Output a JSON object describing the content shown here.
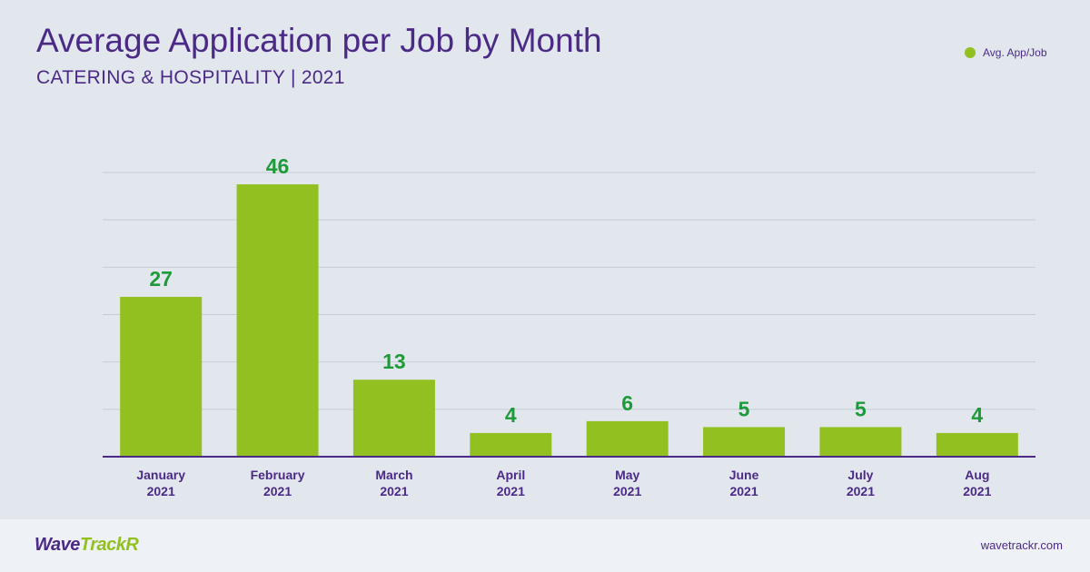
{
  "chart_data": {
    "type": "bar",
    "title": "Average Application per Job by Month",
    "subtitle": "CATERING & HOSPITALITY | 2021",
    "categories": [
      [
        "January",
        "2021"
      ],
      [
        "February",
        "2021"
      ],
      [
        "March",
        "2021"
      ],
      [
        "April",
        "2021"
      ],
      [
        "May",
        "2021"
      ],
      [
        "June",
        "2021"
      ],
      [
        "July",
        "2021"
      ],
      [
        "Aug",
        "2021"
      ]
    ],
    "series": [
      {
        "name": "Avg. App/Job",
        "values": [
          27,
          46,
          13,
          4,
          6,
          5,
          5,
          4
        ]
      }
    ],
    "ylim": [
      0,
      48
    ],
    "grid": true,
    "legend_position": "top-right",
    "colors": {
      "bar": "#93c021",
      "data_label": "#1f9a3a",
      "text": "#4b2a86",
      "grid": "#c7ccd4",
      "axis": "#4b2a86"
    }
  },
  "footer": {
    "logo_part1": "Wave",
    "logo_part2": "TrackR",
    "site": "wavetrackr.com"
  }
}
